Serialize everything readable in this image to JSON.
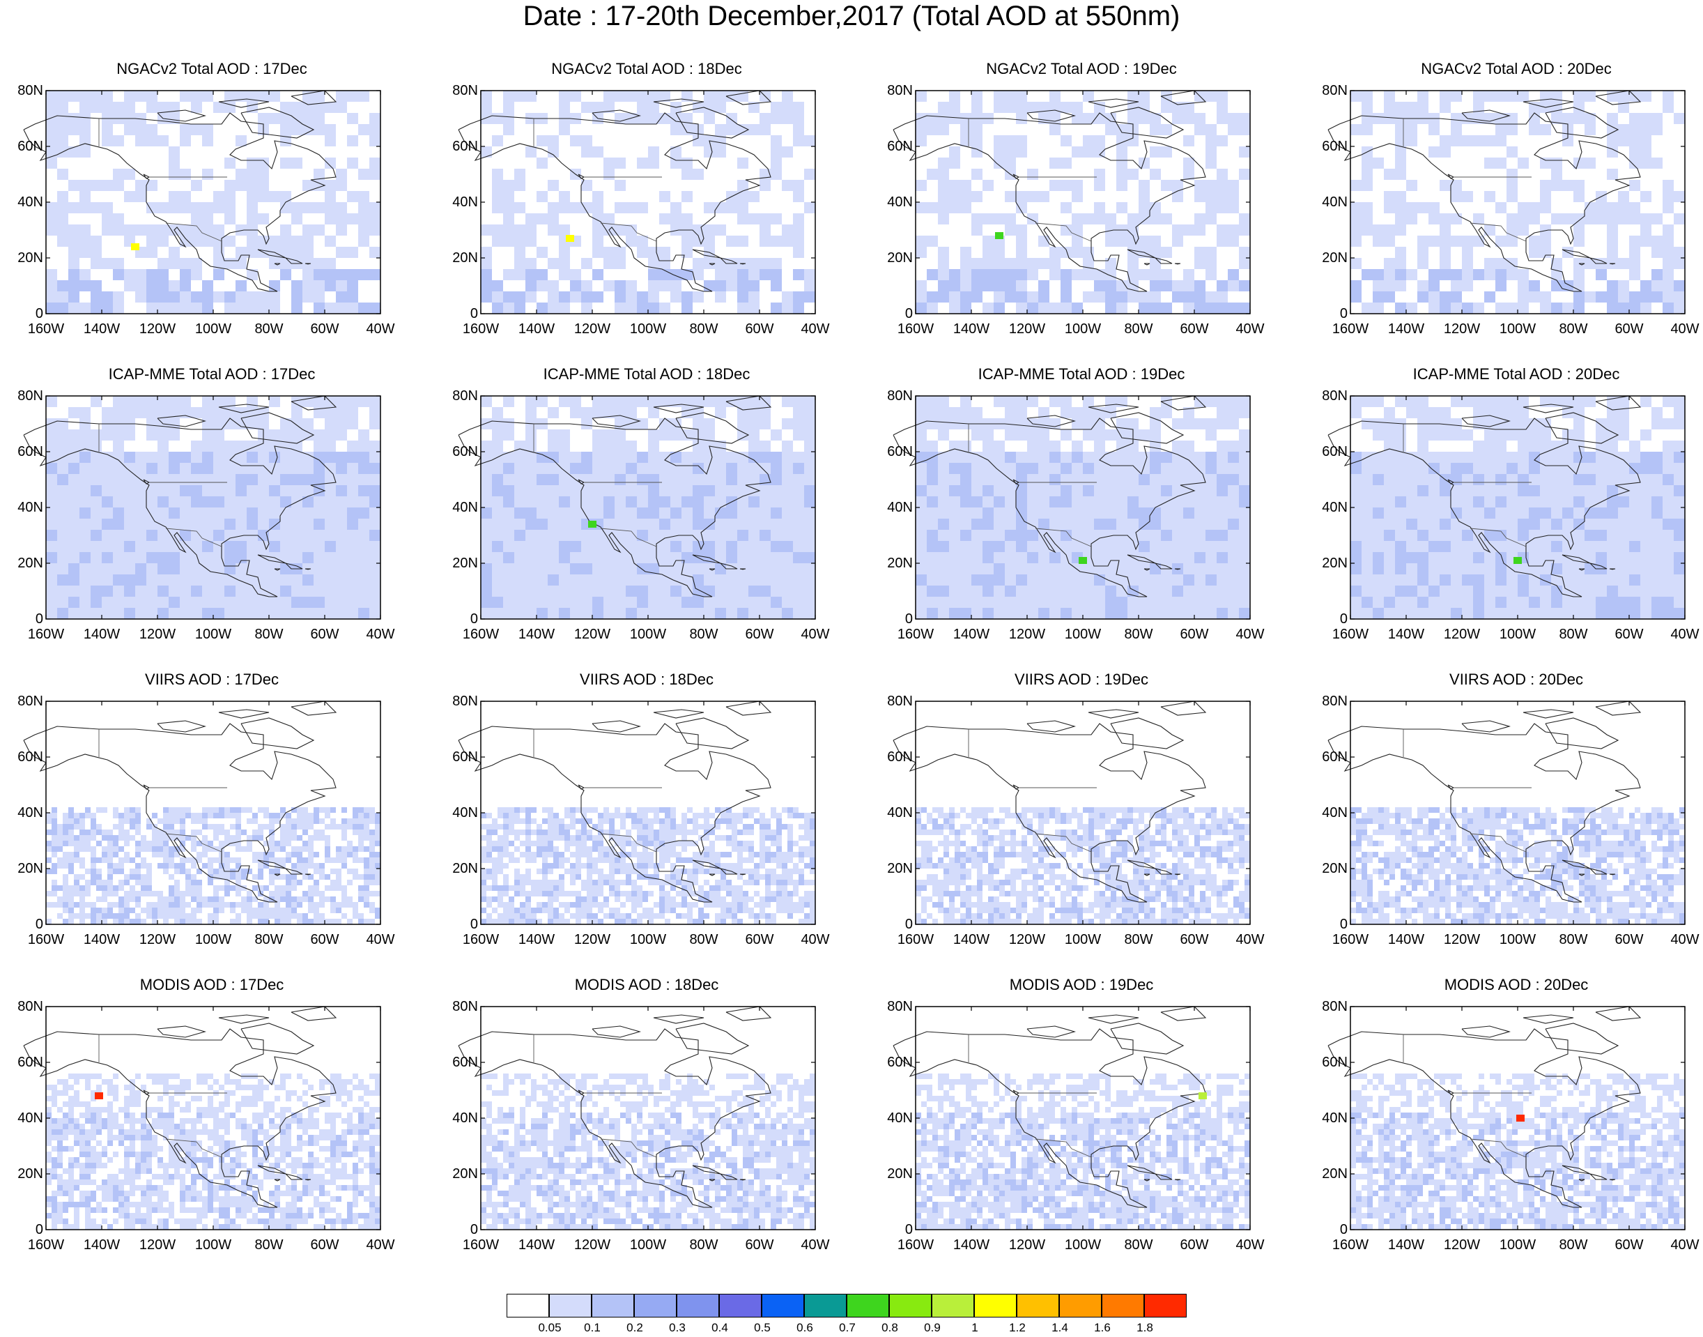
{
  "title": "Date : 17-20th December,2017 (Total AOD at 550nm)",
  "map": {
    "lat_labels": [
      "80N",
      "60N",
      "40N",
      "20N",
      "0"
    ],
    "lon_labels": [
      "160W",
      "140W",
      "120W",
      "100W",
      "80W",
      "60W",
      "40W"
    ]
  },
  "panels": [
    {
      "title": "NGACv2 Total AOD : 17Dec",
      "row": 0,
      "col": 0
    },
    {
      "title": "NGACv2 Total AOD : 18Dec",
      "row": 0,
      "col": 1
    },
    {
      "title": "NGACv2 Total AOD : 19Dec",
      "row": 0,
      "col": 2
    },
    {
      "title": "NGACv2 Total AOD : 20Dec",
      "row": 0,
      "col": 3
    },
    {
      "title": "ICAP-MME Total AOD : 17Dec",
      "row": 1,
      "col": 0
    },
    {
      "title": "ICAP-MME Total AOD : 18Dec",
      "row": 1,
      "col": 1
    },
    {
      "title": "ICAP-MME Total AOD : 19Dec",
      "row": 1,
      "col": 2
    },
    {
      "title": "ICAP-MME Total AOD : 20Dec",
      "row": 1,
      "col": 3
    },
    {
      "title": "VIIRS AOD : 17Dec",
      "row": 2,
      "col": 0
    },
    {
      "title": "VIIRS AOD : 18Dec",
      "row": 2,
      "col": 1
    },
    {
      "title": "VIIRS AOD : 19Dec",
      "row": 2,
      "col": 2
    },
    {
      "title": "VIIRS AOD : 20Dec",
      "row": 2,
      "col": 3
    },
    {
      "title": "MODIS AOD : 17Dec",
      "row": 3,
      "col": 0
    },
    {
      "title": "MODIS AOD : 18Dec",
      "row": 3,
      "col": 1
    },
    {
      "title": "MODIS AOD : 19Dec",
      "row": 3,
      "col": 2
    },
    {
      "title": "MODIS AOD : 20Dec",
      "row": 3,
      "col": 3
    }
  ],
  "colorbar": {
    "labels": [
      "0.05",
      "0.1",
      "0.2",
      "0.3",
      "0.4",
      "0.5",
      "0.6",
      "0.7",
      "0.8",
      "0.9",
      "1",
      "1.2",
      "1.4",
      "1.6",
      "1.8"
    ],
    "colors": [
      "#ffffff",
      "#d4dcfb",
      "#b4c3f7",
      "#96aaf3",
      "#7f93ee",
      "#6a6ae6",
      "#0a62f5",
      "#0a9a95",
      "#3ed51e",
      "#88ea10",
      "#b9ef3a",
      "#ffff00",
      "#ffc000",
      "#ff9c00",
      "#ff7a00",
      "#ff2a00"
    ]
  },
  "highlights": [
    {
      "panel": 0,
      "color": "#ffff00",
      "label": "high AOD patch"
    },
    {
      "panel": 1,
      "color": "#ffff00",
      "label": "high AOD patch"
    },
    {
      "panel": 2,
      "color": "#3ed51e",
      "label": "high AOD patch"
    },
    {
      "panel": 5,
      "color": "#3ed51e",
      "label": "high AOD patch"
    },
    {
      "panel": 6,
      "color": "#3ed51e",
      "label": "high AOD patch"
    },
    {
      "panel": 7,
      "color": "#3ed51e",
      "label": "high AOD patch"
    },
    {
      "panel": 12,
      "color": "#ff2a00",
      "label": "high AOD pixel"
    },
    {
      "panel": 14,
      "color": "#b9ef3a",
      "label": "high AOD pixel"
    },
    {
      "panel": 15,
      "color": "#ff2a00",
      "label": "high AOD pixel"
    }
  ]
}
